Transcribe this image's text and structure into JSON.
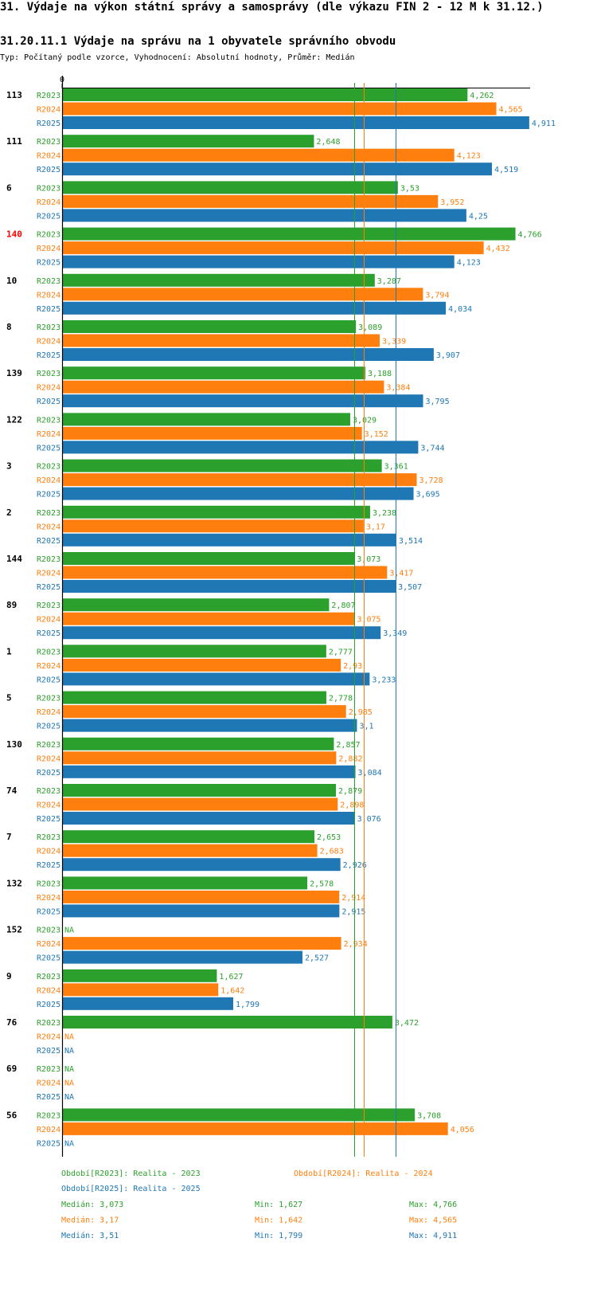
{
  "header": {
    "section_title": "31. Výdaje na výkon státní správy a samosprávy (dle výkazu FIN 2 - 12 M k 31.12.)",
    "indicator_title": "31.20.11.1 Výdaje na správu na 1 obyvatele správního obvodu",
    "subtitle": "Typ: Počítaný podle vzorce, Vyhodnocení: Absolutní hodnoty, Průměr: Medián"
  },
  "colors": {
    "R2023": "#2ca02c",
    "R2024": "#ff7f0e",
    "R2025": "#1f77b4",
    "highlight": "#ff0000"
  },
  "chart_data": {
    "type": "bar",
    "orientation": "horizontal",
    "xlim": [
      0,
      5000
    ],
    "x_tick_labels": [
      "0"
    ],
    "series_names": [
      "R2023",
      "R2024",
      "R2025"
    ],
    "highlighted_category": "140",
    "categories": [
      {
        "name": "113",
        "values": [
          4262,
          4565,
          4911
        ],
        "labels": [
          "4,262",
          "4,565",
          "4,911"
        ]
      },
      {
        "name": "111",
        "values": [
          2648,
          4123,
          4519
        ],
        "labels": [
          "2,648",
          "4,123",
          "4,519"
        ]
      },
      {
        "name": "6",
        "values": [
          3530,
          3952,
          4250
        ],
        "labels": [
          "3,53",
          "3,952",
          "4,25"
        ]
      },
      {
        "name": "140",
        "values": [
          4766,
          4432,
          4123
        ],
        "labels": [
          "4,766",
          "4,432",
          "4,123"
        ]
      },
      {
        "name": "10",
        "values": [
          3287,
          3794,
          4034
        ],
        "labels": [
          "3,287",
          "3,794",
          "4,034"
        ]
      },
      {
        "name": "8",
        "values": [
          3089,
          3339,
          3907
        ],
        "labels": [
          "3,089",
          "3,339",
          "3,907"
        ]
      },
      {
        "name": "139",
        "values": [
          3188,
          3384,
          3795
        ],
        "labels": [
          "3,188",
          "3,384",
          "3,795"
        ]
      },
      {
        "name": "122",
        "values": [
          3029,
          3152,
          3744
        ],
        "labels": [
          "3,029",
          "3,152",
          "3,744"
        ]
      },
      {
        "name": "3",
        "values": [
          3361,
          3728,
          3695
        ],
        "labels": [
          "3,361",
          "3,728",
          "3,695"
        ]
      },
      {
        "name": "2",
        "values": [
          3238,
          3170,
          3514
        ],
        "labels": [
          "3,238",
          "3,17",
          "3,514"
        ]
      },
      {
        "name": "144",
        "values": [
          3073,
          3417,
          3507
        ],
        "labels": [
          "3,073",
          "3,417",
          "3,507"
        ]
      },
      {
        "name": "89",
        "values": [
          2807,
          3075,
          3349
        ],
        "labels": [
          "2,807",
          "3,075",
          "3,349"
        ]
      },
      {
        "name": "1",
        "values": [
          2777,
          2930,
          3233
        ],
        "labels": [
          "2,777",
          "2,93",
          "3,233"
        ]
      },
      {
        "name": "5",
        "values": [
          2778,
          2985,
          3100
        ],
        "labels": [
          "2,778",
          "2,985",
          "3,1"
        ]
      },
      {
        "name": "130",
        "values": [
          2857,
          2882,
          3084
        ],
        "labels": [
          "2,857",
          "2,882",
          "3,084"
        ]
      },
      {
        "name": "74",
        "values": [
          2879,
          2898,
          3076
        ],
        "labels": [
          "2,879",
          "2,898",
          "3,076"
        ]
      },
      {
        "name": "7",
        "values": [
          2653,
          2683,
          2926
        ],
        "labels": [
          "2,653",
          "2,683",
          "2,926"
        ]
      },
      {
        "name": "132",
        "values": [
          2578,
          2914,
          2915
        ],
        "labels": [
          "2,578",
          "2,914",
          "2,915"
        ]
      },
      {
        "name": "152",
        "values": [
          null,
          2934,
          2527
        ],
        "labels": [
          "NA",
          "2,934",
          "2,527"
        ]
      },
      {
        "name": "9",
        "values": [
          1627,
          1642,
          1799
        ],
        "labels": [
          "1,627",
          "1,642",
          "1,799"
        ]
      },
      {
        "name": "76",
        "values": [
          3472,
          null,
          null
        ],
        "labels": [
          "3,472",
          "NA",
          "NA"
        ]
      },
      {
        "name": "69",
        "values": [
          null,
          null,
          null
        ],
        "labels": [
          "NA",
          "NA",
          "NA"
        ]
      },
      {
        "name": "56",
        "values": [
          3708,
          4056,
          null
        ],
        "labels": [
          "3,708",
          "4,056",
          "NA"
        ]
      }
    ],
    "median_lines": [
      {
        "series": "R2023",
        "value": 3073
      },
      {
        "series": "R2024",
        "value": 3170
      },
      {
        "series": "R2025",
        "value": 3510
      }
    ],
    "legend": {
      "periods": [
        {
          "series": "R2023",
          "text": "Období[R2023]: Realita - 2023"
        },
        {
          "series": "R2024",
          "text": "Období[R2024]: Realita - 2024"
        },
        {
          "series": "R2025",
          "text": "Období[R2025]: Realita - 2025"
        }
      ],
      "stats": [
        {
          "series": "R2023",
          "median": "Medián: 3,073",
          "min": "Min: 1,627",
          "max": "Max: 4,766"
        },
        {
          "series": "R2024",
          "median": "Medián: 3,17",
          "min": "Min: 1,642",
          "max": "Max: 4,565"
        },
        {
          "series": "R2025",
          "median": "Medián: 3,51",
          "min": "Min: 1,799",
          "max": "Max: 4,911"
        }
      ]
    }
  }
}
